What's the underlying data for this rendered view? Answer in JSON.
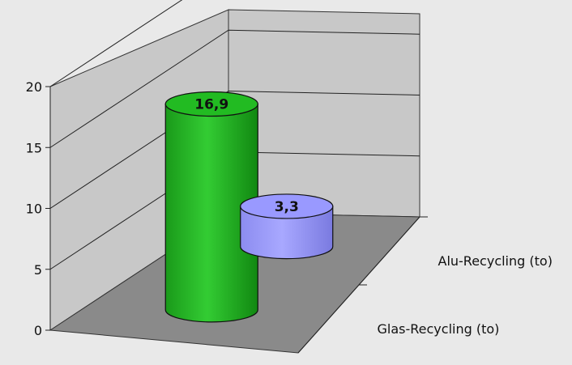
{
  "chart_data": {
    "type": "bar",
    "style": "3d-cylinder",
    "categories": [
      "Alu-Recycling (to)",
      "Glas-Recycling (to)"
    ],
    "values": [
      3.3,
      16.9
    ],
    "data_labels": [
      "3,3",
      "16,9"
    ],
    "yticks": [
      "0",
      "5",
      "10",
      "15",
      "20"
    ],
    "ylim": [
      0,
      20
    ],
    "grid": true,
    "legend": "none",
    "colors": {
      "series": [
        "#9999ff",
        "#22bb22"
      ],
      "wall": "#c8c8c8",
      "floor": "#8a8a8a",
      "background": "#e9e9e9"
    }
  }
}
